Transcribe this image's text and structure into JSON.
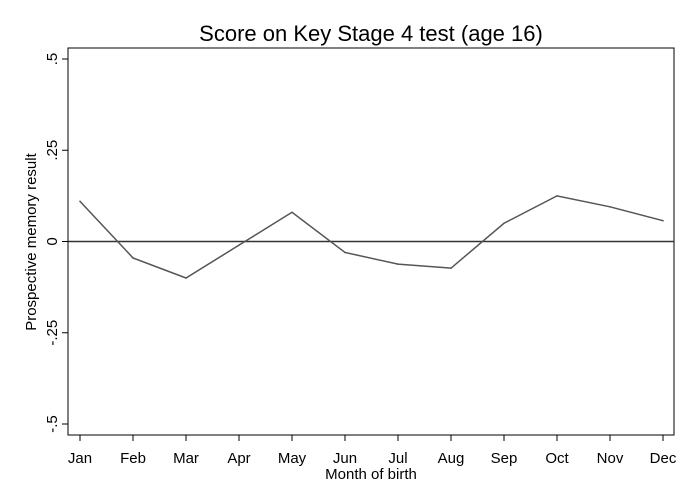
{
  "chart_data": {
    "type": "line",
    "title": "Score on Key Stage 4 test (age 16)",
    "xlabel": "Month of birth",
    "ylabel": "Prospective memory result",
    "categories": [
      "Jan",
      "Feb",
      "Mar",
      "Apr",
      "May",
      "Jun",
      "Jul",
      "Aug",
      "Sep",
      "Oct",
      "Nov",
      "Dec"
    ],
    "series": [
      {
        "values": [
          0.11,
          -0.045,
          -0.1,
          -0.01,
          0.08,
          -0.03,
          -0.062,
          -0.073,
          0.05,
          0.125,
          0.095,
          0.057
        ]
      }
    ],
    "yticks": [
      {
        "value": -0.5,
        "label": "-.5"
      },
      {
        "value": -0.25,
        "label": "-.25"
      },
      {
        "value": 0,
        "label": "0"
      },
      {
        "value": 0.25,
        "label": ".25"
      },
      {
        "value": 0.5,
        "label": ".5"
      }
    ],
    "ylim": [
      -0.5,
      0.5
    ],
    "reference_line": 0,
    "grid": false,
    "colors": {
      "line": "#555555",
      "reference": "#333333",
      "axis": "#000000"
    }
  }
}
